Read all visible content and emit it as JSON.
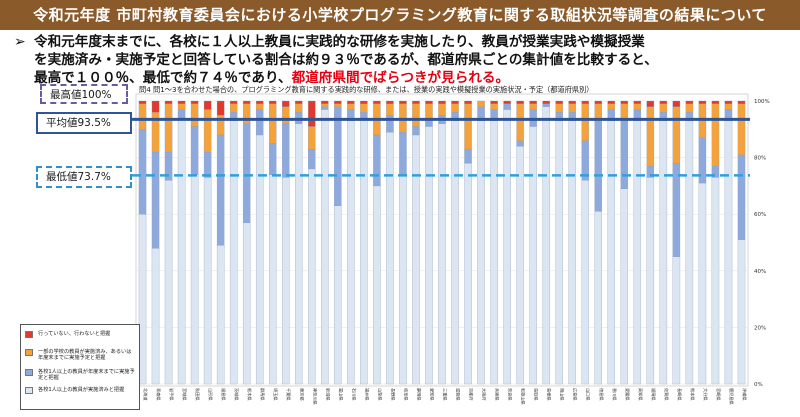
{
  "banner": {
    "title": "令和元年度 市町村教育委員会における小学校プログラミング教育に関する取組状況等調査の結果について"
  },
  "lead": {
    "arrow": "➢",
    "line1": "令和元年度末までに、各校に１人以上教員に実践的な研修を実施したり、教員が授業実践や模擬授業",
    "line2": "を実施済み・実施予定と回答している割合は約９３％であるが、都道府県ごとの集計値を比較すると、",
    "line3_a": "最高で１００％、最低で約７４％であり、",
    "line3_b": "都道府県間でばらつきが見られる。"
  },
  "reference": {
    "max_label": "最高値100%",
    "avg_label": "平均値93.5%",
    "min_label": "最低値73.7%",
    "avg_value": 93.5,
    "min_value": 73.7,
    "avg_color": "#2f5597",
    "min_color": "#2f9fdf"
  },
  "legend": {
    "items": [
      {
        "label": "行っていない、行わないと把握",
        "color": "#e03a2f"
      },
      {
        "label": "一部の学校の教員が実施済み、あるいは年度末までに実施予定と把握",
        "color": "#f4a23c"
      },
      {
        "label": "各校1人以上の教員が年度末までに実施予定と把握",
        "color": "#8ea9db"
      },
      {
        "label": "各校1人以上の教員が実施済みと把握",
        "color": "#dce6f2"
      }
    ]
  },
  "chart_data": {
    "type": "bar",
    "stacked": true,
    "title": "問4 問1～3を合わせた場合の、プログラミング教育に関する実践的な研修、または、授業の実践や模擬授業の実施状況・予定（都道府県別）",
    "categories": [
      "北海道",
      "青森県",
      "岩手県",
      "宮城県",
      "秋田県",
      "山形県",
      "福島県",
      "茨城県",
      "栃木県",
      "群馬県",
      "埼玉県",
      "千葉県",
      "東京都",
      "神奈川県",
      "新潟県",
      "富山県",
      "石川県",
      "福井県",
      "山梨県",
      "長野県",
      "岐阜県",
      "静岡県",
      "愛知県",
      "三重県",
      "滋賀県",
      "京都府",
      "大阪府",
      "兵庫県",
      "奈良県",
      "和歌山県",
      "鳥取県",
      "島根県",
      "岡山県",
      "広島県",
      "山口県",
      "徳島県",
      "香川県",
      "愛媛県",
      "高知県",
      "福岡県",
      "佐賀県",
      "長崎県",
      "熊本県",
      "大分県",
      "宮崎県",
      "鹿児島県",
      "沖縄県"
    ],
    "yticks": [
      "0%",
      "20%",
      "40%",
      "60%",
      "80%",
      "100%"
    ],
    "ylim": [
      0,
      100
    ],
    "series": [
      {
        "name": "各校1人以上の教員が実施済みと把握",
        "color": "#dce6f2",
        "values": [
          60,
          48,
          72,
          94,
          74,
          73,
          49,
          93,
          57,
          88,
          74,
          73,
          92,
          76,
          97,
          63,
          93,
          94,
          70,
          89,
          74,
          88,
          91,
          92,
          93,
          78,
          93,
          93,
          97,
          84,
          91,
          98,
          93,
          93,
          72,
          61,
          93,
          69,
          93,
          73,
          93,
          45,
          93,
          71,
          73,
          93,
          51
        ]
      },
      {
        "name": "各校1人以上の教員が年度末までに実施予定と把握",
        "color": "#8ea9db",
        "values": [
          30,
          34,
          10,
          3,
          17,
          9,
          39,
          3,
          35,
          9,
          11,
          19,
          4,
          7,
          1,
          35,
          4,
          2,
          18,
          6,
          15,
          3,
          3,
          3,
          3,
          5,
          5,
          4,
          2,
          2,
          6,
          1,
          3,
          3,
          14,
          32,
          4,
          24,
          4,
          4,
          3,
          33,
          3,
          16,
          4,
          4,
          30
        ]
      },
      {
        "name": "一部の学校の教員が実施済み、あるいは年度末までに実施予定と把握",
        "color": "#f4a23c",
        "values": [
          9,
          14,
          17,
          2,
          8,
          15,
          7,
          3,
          7,
          2,
          14,
          6,
          3,
          8,
          1,
          1,
          2,
          3,
          11,
          4,
          10,
          8,
          5,
          4,
          3,
          16,
          2,
          2,
          0,
          13,
          2,
          0,
          3,
          3,
          13,
          6,
          2,
          6,
          2,
          21,
          3,
          20,
          3,
          12,
          22,
          2,
          18
        ]
      },
      {
        "name": "行っていない、行わないと把握",
        "color": "#e03a2f",
        "values": [
          1,
          4,
          1,
          1,
          1,
          3,
          5,
          1,
          1,
          1,
          1,
          2,
          1,
          9,
          1,
          1,
          1,
          1,
          1,
          1,
          1,
          1,
          1,
          1,
          1,
          1,
          0,
          1,
          1,
          1,
          1,
          1,
          1,
          1,
          1,
          1,
          1,
          1,
          1,
          2,
          1,
          2,
          1,
          1,
          1,
          1,
          1
        ]
      }
    ]
  }
}
